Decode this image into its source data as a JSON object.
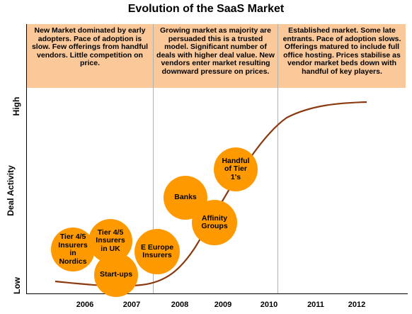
{
  "title": "Evolution of the SaaS Market",
  "phases": [
    {
      "text": "New Market dominated by early adopters. Pace of adoption is slow. Few offerings from handful vendors. Little competition on price."
    },
    {
      "text": "Growing market as majority are persuaded this is a trusted model. Significant number of deals with higher deal value. New vendors enter market resulting downward pressure on prices."
    },
    {
      "text": "Established market. Some late entrants. Pace of adoption slows. Offerings matured to include full office hosting. Prices stabilise as vendor market beds down with handful of key players."
    }
  ],
  "y_axis": {
    "label": "Deal Activity",
    "high": "High",
    "low": "Low"
  },
  "x_ticks": [
    "2006",
    "2007",
    "2008",
    "2009",
    "2010",
    "2011",
    "2012"
  ],
  "bubbles": [
    {
      "id": "tier45-nordics",
      "label": "Tier 4/5 Insurers in Nordics"
    },
    {
      "id": "tier45-uk",
      "label": "Tier 4/5 Insurers in UK"
    },
    {
      "id": "start-ups",
      "label": "Start-ups"
    },
    {
      "id": "e-europe",
      "label": "E Europe Insurers"
    },
    {
      "id": "banks",
      "label": "Banks"
    },
    {
      "id": "affinity",
      "label": "Affinity Groups"
    },
    {
      "id": "tier1",
      "label": "Handful of Tier 1's"
    }
  ],
  "colors": {
    "phase_fill": "#fbc999",
    "bubble_fill": "#ff9900",
    "curve": "#8b3a0f",
    "axis": "#000000",
    "divider": "#b0b0b0"
  }
}
